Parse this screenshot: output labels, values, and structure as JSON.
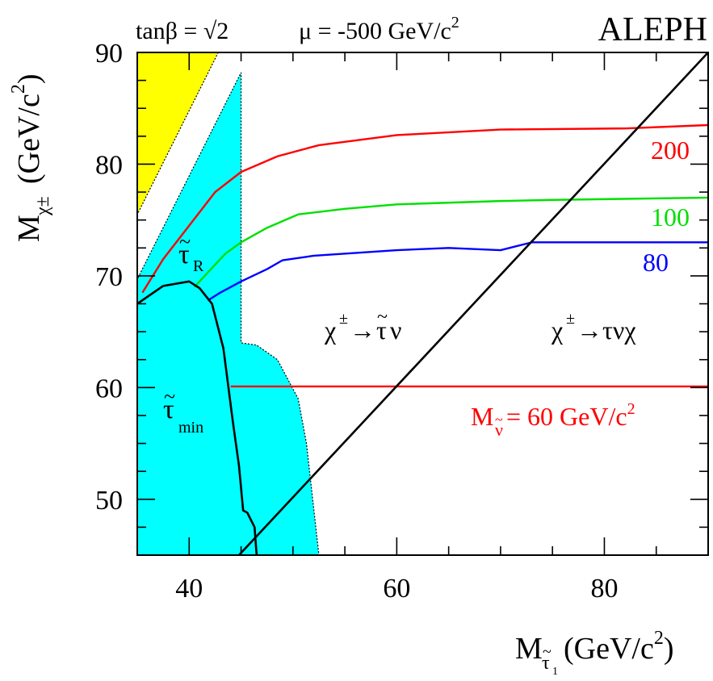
{
  "chart_data": {
    "type": "line",
    "header": {
      "params_left": "tanβ = √2",
      "params_mu": "μ = -500 GeV/c",
      "params_mu_exp": "2",
      "experiment": "ALEPH"
    },
    "xlabel": {
      "main": "M",
      "sub_letter": "τ",
      "sub_tilde": "~",
      "sub_index": "1",
      "units": "(GeV/c",
      "units_exp": "2",
      "units_close": ")"
    },
    "ylabel": {
      "main": "M",
      "sub": "χ±",
      "units": "(GeV/c",
      "units_exp": "2",
      "units_close": ")"
    },
    "xlim": [
      35,
      90
    ],
    "ylim": [
      45,
      90
    ],
    "x_ticks": [
      40,
      60,
      80
    ],
    "y_ticks": [
      50,
      60,
      70,
      80,
      90
    ],
    "colors": {
      "red": "#ff0000",
      "green": "#00e000",
      "blue": "#0000ff",
      "cyan": "#00ffff",
      "yellow": "#ffff00",
      "black": "#000000"
    },
    "regions": [
      {
        "name": "yellow-excluded",
        "color": "#ffff00",
        "points": [
          [
            35,
            90
          ],
          [
            42.8,
            90
          ],
          [
            35,
            75.5
          ]
        ]
      },
      {
        "name": "cyan-excluded",
        "color": "#00ffff",
        "points": [
          [
            35,
            45
          ],
          [
            35,
            69.7
          ],
          [
            45,
            88.2
          ],
          [
            45,
            64
          ],
          [
            46.5,
            63.8
          ],
          [
            48.5,
            62.5
          ],
          [
            50.5,
            59
          ],
          [
            51.3,
            55
          ],
          [
            51.9,
            50
          ],
          [
            52.5,
            45
          ]
        ]
      }
    ],
    "series": [
      {
        "name": "200",
        "color": "#ff0000",
        "x": [
          35.5,
          37.5,
          40,
          42.5,
          45,
          48.5,
          52.5,
          60,
          70,
          82,
          90
        ],
        "y": [
          68.5,
          71.5,
          74.5,
          77.5,
          79.3,
          80.7,
          81.7,
          82.6,
          83.1,
          83.2,
          83.5
        ]
      },
      {
        "name": "100",
        "color": "#00e000",
        "x": [
          40.5,
          42,
          43.5,
          45,
          47.5,
          50.5,
          55,
          60,
          70,
          75,
          90
        ],
        "y": [
          69,
          70.5,
          72,
          73,
          74.3,
          75.5,
          76,
          76.4,
          76.7,
          76.8,
          77
        ]
      },
      {
        "name": "80",
        "color": "#0000ff",
        "x": [
          41.8,
          43,
          45,
          47.5,
          49,
          52,
          60,
          65,
          70,
          73,
          90
        ],
        "y": [
          67.8,
          68.5,
          69.5,
          70.6,
          71.4,
          71.8,
          72.3,
          72.5,
          72.3,
          73,
          73
        ]
      },
      {
        "name": "60",
        "color": "#ff0000",
        "x": [
          44,
          90
        ],
        "y": [
          60.1,
          60.1
        ]
      }
    ],
    "boundaries": [
      {
        "name": "tau-min-boundary",
        "color": "#000000",
        "x": [
          35,
          37.5,
          40,
          41,
          42.2,
          43.3,
          44.2,
          44.8,
          45.2,
          45.6,
          46.3,
          46.5
        ],
        "y": [
          67.5,
          69.1,
          69.5,
          68.9,
          67.5,
          63.5,
          57,
          53,
          49,
          48.8,
          47.5,
          45
        ]
      },
      {
        "name": "diagonal-kinematic-limit",
        "color": "#000000",
        "x": [
          44.8,
          90
        ],
        "y": [
          45,
          90
        ]
      }
    ],
    "annotations": {
      "curve_200": "200",
      "curve_100": "100",
      "curve_80": "80",
      "mass_60_prefix": "M",
      "mass_60_sub_letter": "ν",
      "mass_60_sub_tilde": "~",
      "mass_60_value": " = 60 GeV/c",
      "mass_60_exp": "2",
      "tauR_letter": "τ",
      "tauR_tilde": "~",
      "tauR_sub": "R",
      "taumin_letter": "τ",
      "taumin_tilde": "~",
      "taumin_sub": "min",
      "decay1_chi": "χ",
      "decay1_sup": "±",
      "decay1_rest_arrow": "→",
      "decay1_tau": "τ",
      "decay1_tau_tilde": "~",
      "decay1_nu": "ν",
      "decay2_chi": "χ",
      "decay2_sup": "±",
      "decay2_rest": "→τνχ"
    }
  }
}
